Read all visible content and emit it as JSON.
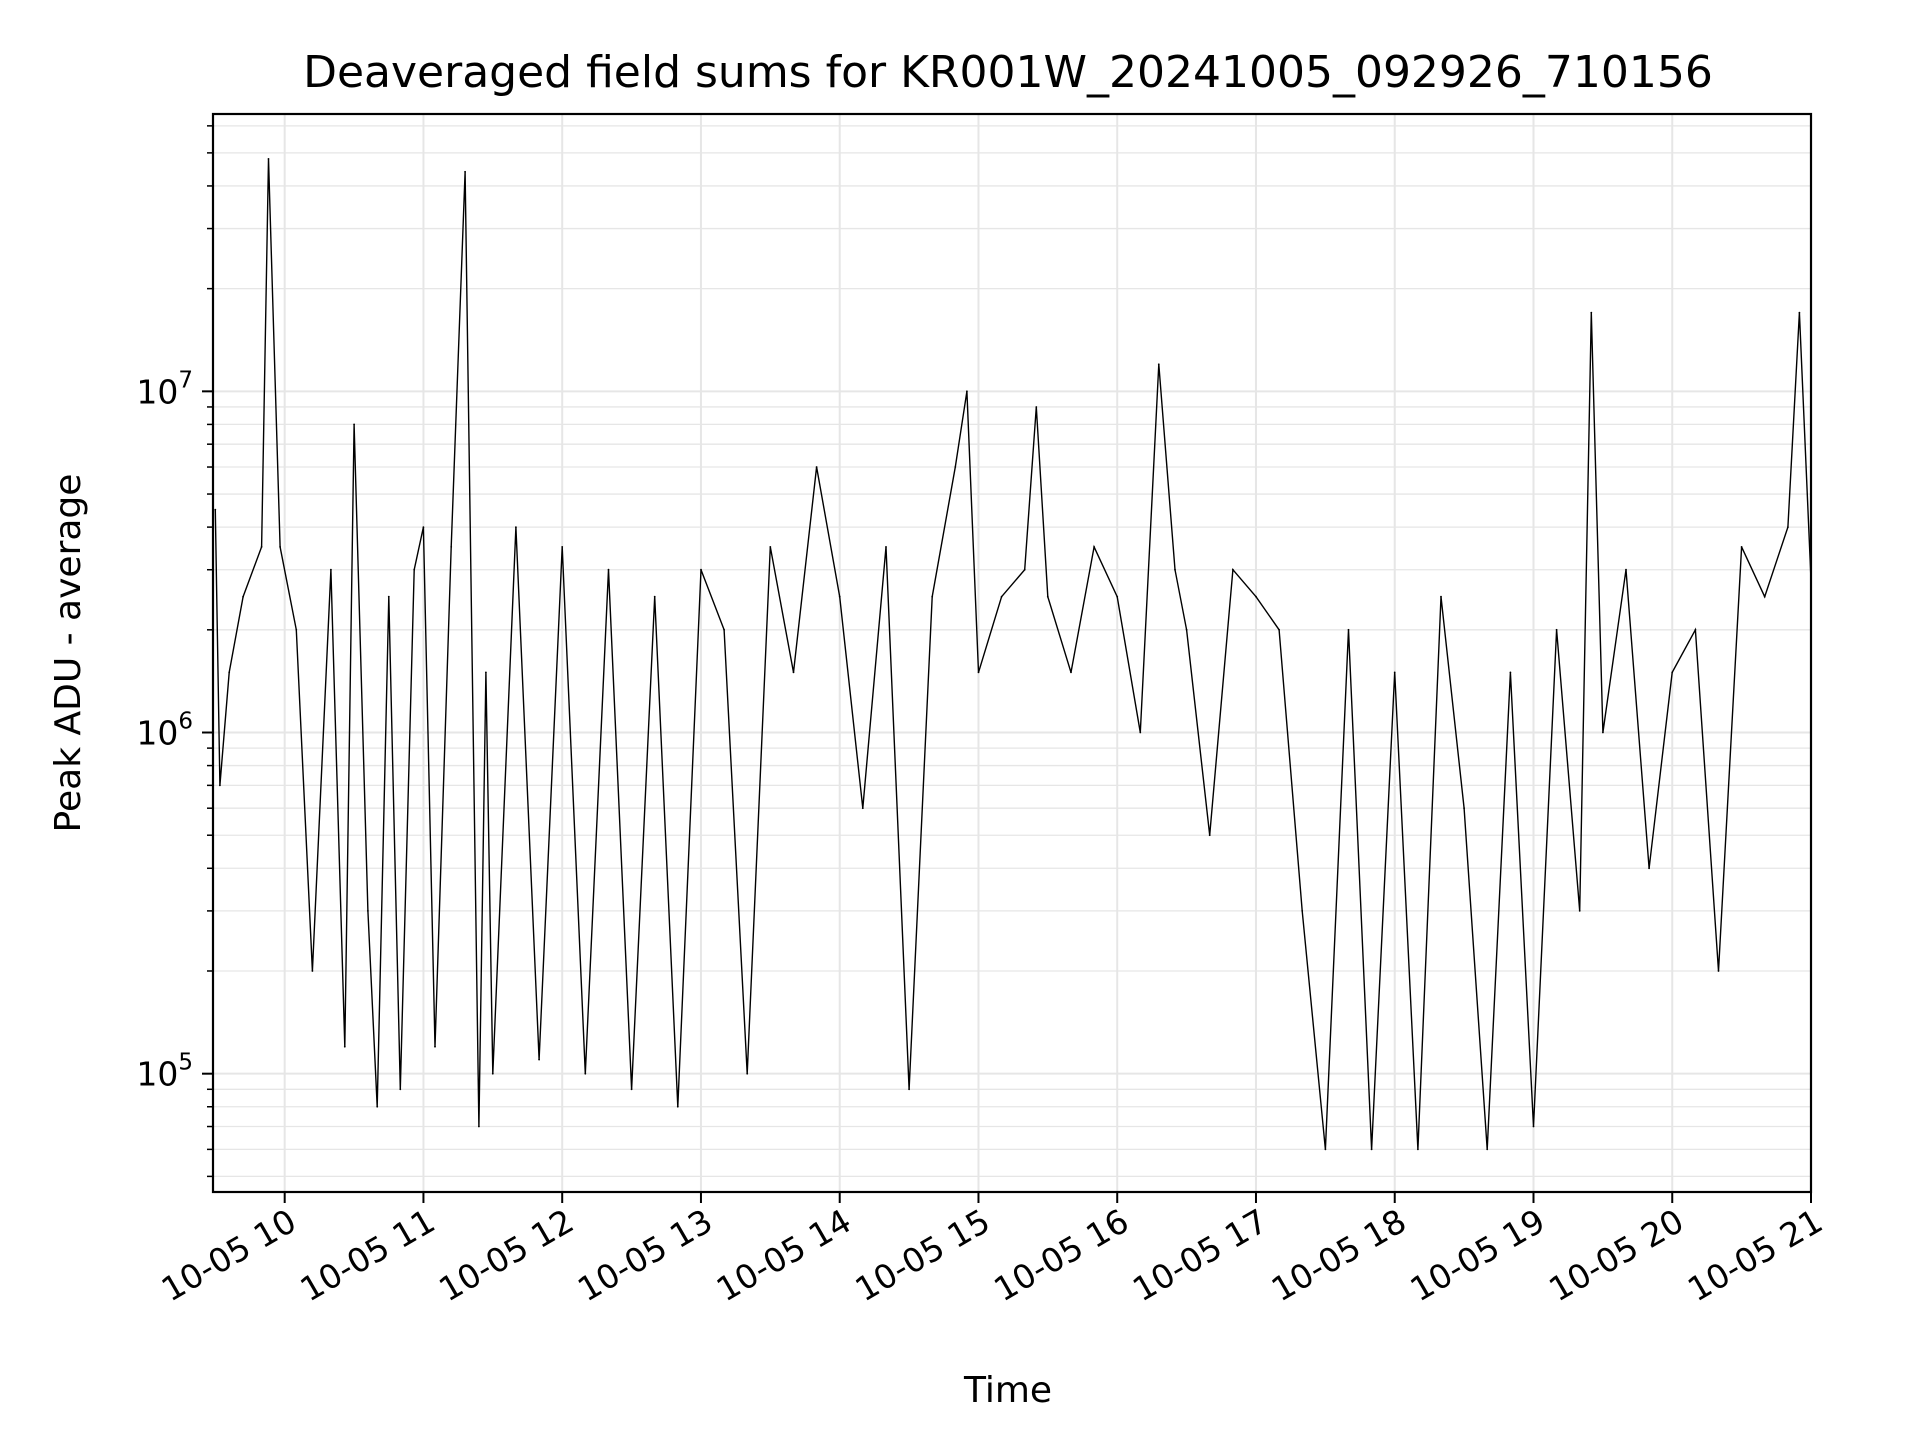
{
  "chart_data": {
    "type": "line",
    "title": "Deaveraged field sums for KR001W_20241005_092926_710156",
    "xlabel": "Time",
    "ylabel": "Peak ADU - average",
    "yscale": "log",
    "grid": true,
    "line_color": "#000000",
    "grid_color": "#e6e6e6",
    "xlim": [
      "2024-10-05 09:29",
      "2024-10-05 21:00"
    ],
    "ylim": [
      45000,
      65000000
    ],
    "x_ticks": [
      {
        "value": "2024-10-05 10:00",
        "label": "10-05 10"
      },
      {
        "value": "2024-10-05 11:00",
        "label": "10-05 11"
      },
      {
        "value": "2024-10-05 12:00",
        "label": "10-05 12"
      },
      {
        "value": "2024-10-05 13:00",
        "label": "10-05 13"
      },
      {
        "value": "2024-10-05 14:00",
        "label": "10-05 14"
      },
      {
        "value": "2024-10-05 15:00",
        "label": "10-05 15"
      },
      {
        "value": "2024-10-05 16:00",
        "label": "10-05 16"
      },
      {
        "value": "2024-10-05 17:00",
        "label": "10-05 17"
      },
      {
        "value": "2024-10-05 18:00",
        "label": "10-05 18"
      },
      {
        "value": "2024-10-05 19:00",
        "label": "10-05 19"
      },
      {
        "value": "2024-10-05 20:00",
        "label": "10-05 20"
      },
      {
        "value": "2024-10-05 21:00",
        "label": "10-05 21"
      }
    ],
    "y_ticks": [
      {
        "value": 100000,
        "base": "10",
        "exp": "5"
      },
      {
        "value": 1000000,
        "base": "10",
        "exp": "6"
      },
      {
        "value": 10000000,
        "base": "10",
        "exp": "7"
      }
    ],
    "series": [
      {
        "x": [
          "2024-10-05 09:30",
          "2024-10-05 09:32",
          "2024-10-05 09:36",
          "2024-10-05 09:42",
          "2024-10-05 09:50",
          "2024-10-05 09:53",
          "2024-10-05 09:58",
          "2024-10-05 10:05",
          "2024-10-05 10:12",
          "2024-10-05 10:20",
          "2024-10-05 10:26",
          "2024-10-05 10:30",
          "2024-10-05 10:36",
          "2024-10-05 10:40",
          "2024-10-05 10:45",
          "2024-10-05 10:50",
          "2024-10-05 10:56",
          "2024-10-05 11:00",
          "2024-10-05 11:05",
          "2024-10-05 11:12",
          "2024-10-05 11:18",
          "2024-10-05 11:24",
          "2024-10-05 11:27",
          "2024-10-05 11:30",
          "2024-10-05 11:40",
          "2024-10-05 11:50",
          "2024-10-05 12:00",
          "2024-10-05 12:10",
          "2024-10-05 12:20",
          "2024-10-05 12:30",
          "2024-10-05 12:40",
          "2024-10-05 12:50",
          "2024-10-05 13:00",
          "2024-10-05 13:10",
          "2024-10-05 13:20",
          "2024-10-05 13:30",
          "2024-10-05 13:40",
          "2024-10-05 13:50",
          "2024-10-05 14:00",
          "2024-10-05 14:10",
          "2024-10-05 14:20",
          "2024-10-05 14:30",
          "2024-10-05 14:40",
          "2024-10-05 14:50",
          "2024-10-05 14:55",
          "2024-10-05 15:00",
          "2024-10-05 15:10",
          "2024-10-05 15:20",
          "2024-10-05 15:25",
          "2024-10-05 15:30",
          "2024-10-05 15:40",
          "2024-10-05 15:50",
          "2024-10-05 16:00",
          "2024-10-05 16:10",
          "2024-10-05 16:18",
          "2024-10-05 16:25",
          "2024-10-05 16:30",
          "2024-10-05 16:40",
          "2024-10-05 16:50",
          "2024-10-05 17:00",
          "2024-10-05 17:10",
          "2024-10-05 17:20",
          "2024-10-05 17:30",
          "2024-10-05 17:40",
          "2024-10-05 17:50",
          "2024-10-05 18:00",
          "2024-10-05 18:10",
          "2024-10-05 18:20",
          "2024-10-05 18:30",
          "2024-10-05 18:40",
          "2024-10-05 18:50",
          "2024-10-05 19:00",
          "2024-10-05 19:10",
          "2024-10-05 19:20",
          "2024-10-05 19:25",
          "2024-10-05 19:30",
          "2024-10-05 19:40",
          "2024-10-05 19:50",
          "2024-10-05 20:00",
          "2024-10-05 20:10",
          "2024-10-05 20:20",
          "2024-10-05 20:30",
          "2024-10-05 20:40",
          "2024-10-05 20:50",
          "2024-10-05 20:55",
          "2024-10-05 21:00"
        ],
        "y": [
          4500000,
          700000,
          1500000,
          2500000,
          3500000,
          48000000,
          3500000,
          2000000,
          200000,
          3000000,
          120000,
          8000000,
          300000,
          80000,
          2500000,
          90000,
          3000000,
          4000000,
          120000,
          3500000,
          44000000,
          70000,
          1500000,
          100000,
          4000000,
          110000,
          3500000,
          100000,
          3000000,
          90000,
          2500000,
          80000,
          3000000,
          2000000,
          100000,
          3500000,
          1500000,
          6000000,
          2500000,
          600000,
          3500000,
          90000,
          2500000,
          6000000,
          10000000,
          1500000,
          2500000,
          3000000,
          9000000,
          2500000,
          1500000,
          3500000,
          2500000,
          1000000,
          12000000,
          3000000,
          2000000,
          500000,
          3000000,
          2500000,
          2000000,
          300000,
          60000,
          2000000,
          60000,
          1500000,
          60000,
          2500000,
          600000,
          60000,
          1500000,
          70000,
          2000000,
          300000,
          17000000,
          1000000,
          3000000,
          400000,
          1500000,
          2000000,
          200000,
          3500000,
          2500000,
          4000000,
          17000000,
          2800000
        ]
      }
    ]
  }
}
